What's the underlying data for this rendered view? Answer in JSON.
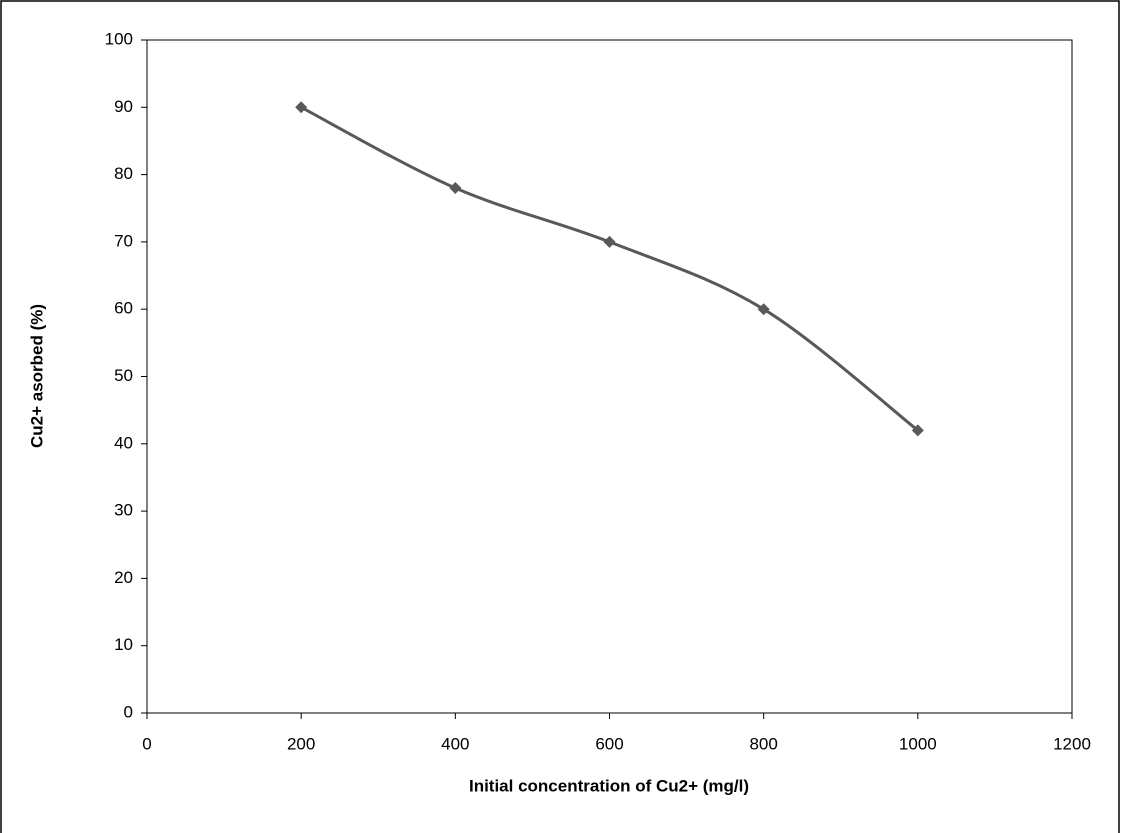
{
  "chart_data": {
    "type": "line",
    "smooth": true,
    "marker": "diamond",
    "x_label": "Initial concentration of Cu2+ (mg/l)",
    "y_label": "Cu2+ asorbed (%)",
    "x": [
      200,
      400,
      600,
      800,
      1000
    ],
    "values": [
      90,
      78,
      70,
      60,
      42
    ],
    "color": "#595959",
    "xlim": [
      0,
      1200
    ],
    "xticks": [
      0,
      200,
      400,
      600,
      800,
      1000,
      1200
    ],
    "ylim": [
      0,
      100
    ],
    "yticks": [
      0,
      10,
      20,
      30,
      40,
      50,
      60,
      70,
      80,
      90,
      100
    ],
    "grid": false
  }
}
